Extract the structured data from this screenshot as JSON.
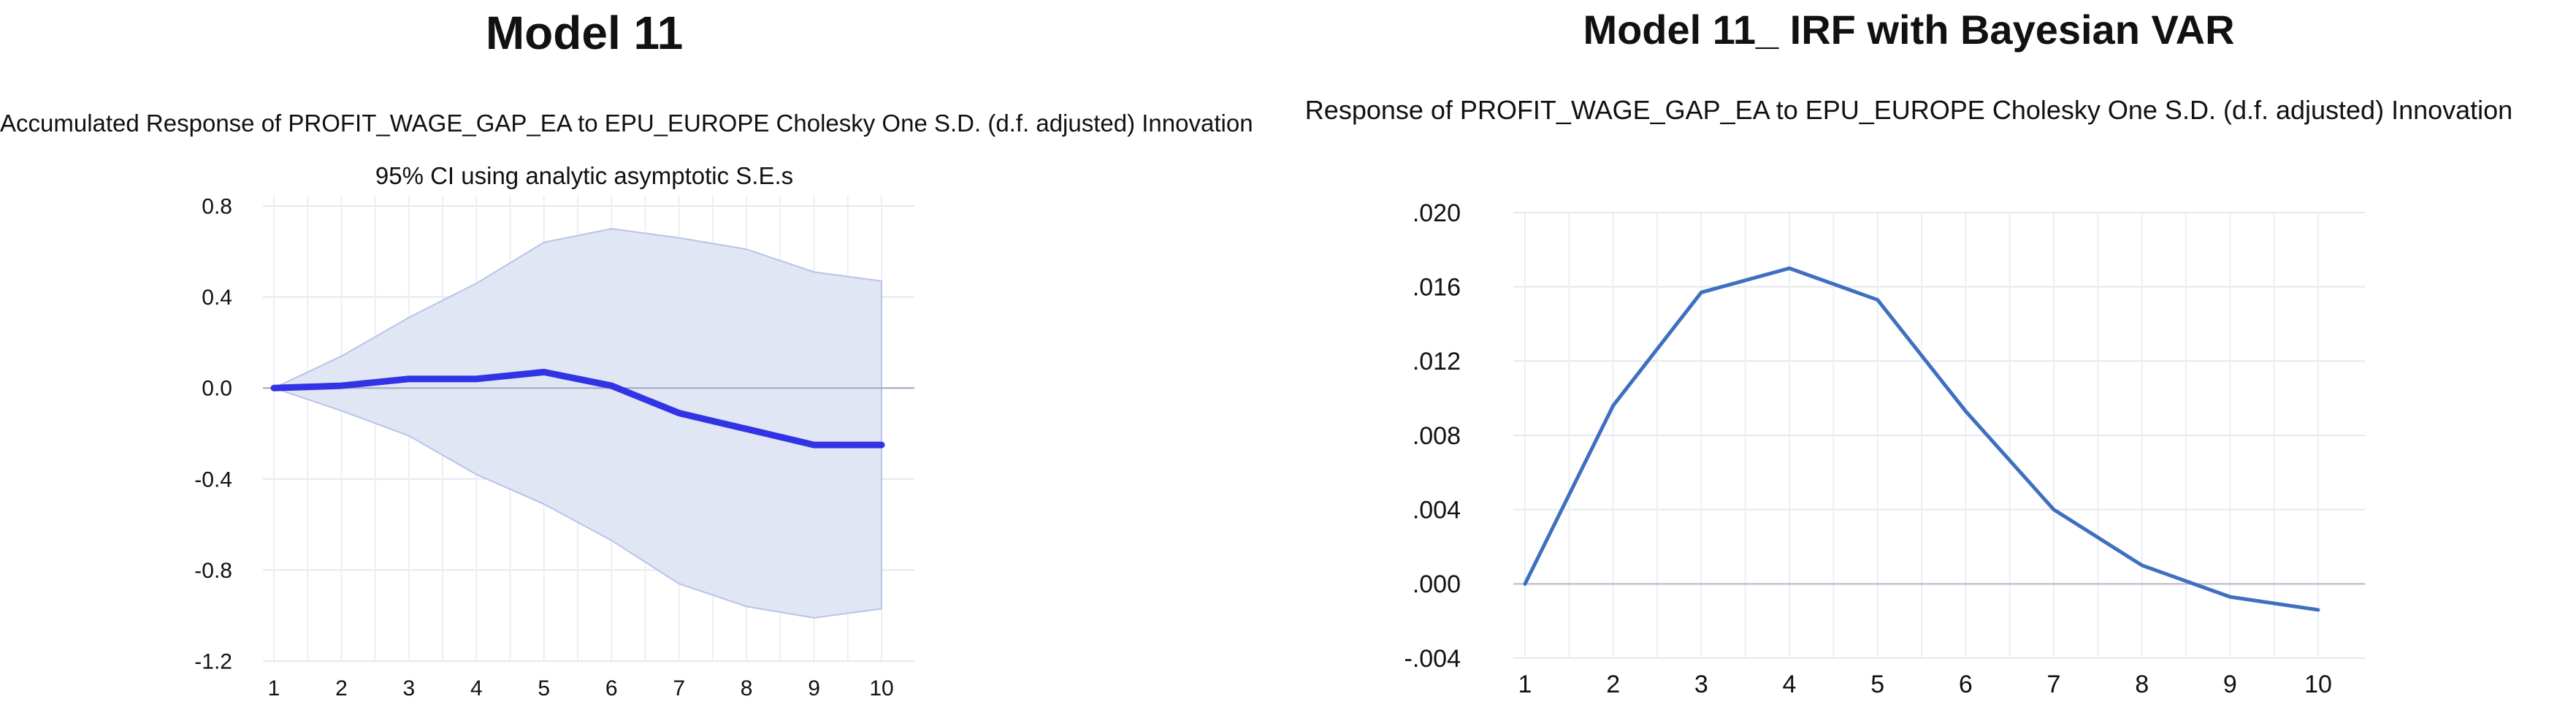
{
  "panels": {
    "left": {
      "heading": "Model 11",
      "title": "Accumulated Response of PROFIT_WAGE_GAP_EA to EPU_EUROPE Cholesky One S.D. (d.f. adjusted) Innovation",
      "subtitle": "95% CI using analytic asymptotic S.E.s"
    },
    "right": {
      "heading": "Model 11_ IRF with Bayesian VAR",
      "title": "Response of PROFIT_WAGE_GAP_EA to EPU_EUROPE Cholesky One S.D. (d.f. adjusted) Innovation"
    }
  },
  "chart_data": [
    {
      "type": "area",
      "title": "Accumulated Response of PROFIT_WAGE_GAP_EA to EPU_EUROPE Cholesky One S.D. (d.f. adjusted) Innovation",
      "subtitle": "95% CI using analytic asymptotic S.E.s",
      "xlabel": "",
      "ylabel": "",
      "x": [
        1,
        2,
        3,
        4,
        5,
        6,
        7,
        8,
        9,
        10
      ],
      "x_tick_labels": [
        "1",
        "2",
        "3",
        "4",
        "5",
        "6",
        "7",
        "8",
        "9",
        "10"
      ],
      "y_tick_labels": [
        "0.8",
        "0.4",
        "0.0",
        "-0.4",
        "-0.8",
        "-1.2"
      ],
      "y_ticks": [
        0.8,
        0.4,
        0.0,
        -0.4,
        -0.8,
        -1.2
      ],
      "ylim": [
        -1.2,
        0.8
      ],
      "series": [
        {
          "values": [
            0.0,
            0.01,
            0.04,
            0.04,
            0.07,
            0.01,
            -0.11,
            -0.18,
            -0.25,
            -0.25
          ]
        }
      ],
      "confidence_band": {
        "upper": [
          0.0,
          0.14,
          0.31,
          0.46,
          0.64,
          0.7,
          0.66,
          0.61,
          0.51,
          0.47
        ],
        "lower": [
          0.0,
          -0.1,
          -0.21,
          -0.38,
          -0.51,
          -0.67,
          -0.86,
          -0.96,
          -1.01,
          -0.97
        ]
      },
      "grid": true,
      "colors": {
        "line": "#3333e6",
        "band_fill": "#dde3f3",
        "band_edge": "#b8c4e8",
        "zero_line": "#a0a8c0"
      }
    },
    {
      "type": "line",
      "title": "Response of PROFIT_WAGE_GAP_EA to EPU_EUROPE Cholesky One S.D. (d.f. adjusted) Innovation",
      "xlabel": "",
      "ylabel": "",
      "x": [
        1,
        2,
        3,
        4,
        5,
        6,
        7,
        8,
        9,
        10
      ],
      "x_tick_labels": [
        "1",
        "2",
        "3",
        "4",
        "5",
        "6",
        "7",
        "8",
        "9",
        "10"
      ],
      "y_tick_labels": [
        ".020",
        ".016",
        ".012",
        ".008",
        ".004",
        ".000",
        "-.004"
      ],
      "y_ticks": [
        0.02,
        0.016,
        0.012,
        0.008,
        0.004,
        0.0,
        -0.004
      ],
      "ylim": [
        -0.004,
        0.02
      ],
      "series": [
        {
          "values": [
            0.0,
            0.0096,
            0.0157,
            0.017,
            0.0153,
            0.0093,
            0.004,
            0.001,
            -0.0007,
            -0.0014
          ]
        }
      ],
      "grid": true,
      "colors": {
        "line": "#3f6fc0",
        "zero_line": "#b8b8c8"
      }
    }
  ]
}
